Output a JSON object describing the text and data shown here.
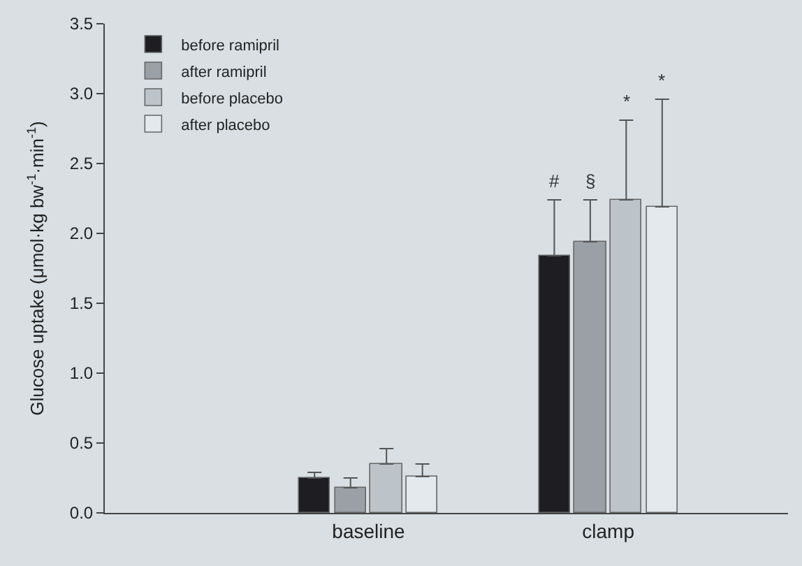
{
  "chart_data": {
    "type": "bar",
    "ylabel": "Glucose uptake (μmol·kg bw$^{-1}$·min$^{-1}$)",
    "categories": [
      "baseline",
      "clamp"
    ],
    "series": [
      {
        "name": "before ramipril",
        "color": "#1e1e22",
        "values": [
          0.25,
          1.84
        ],
        "errors": [
          [
            0.25,
            0.29
          ],
          [
            1.84,
            2.24
          ]
        ]
      },
      {
        "name": "after ramipril",
        "color": "#9aa0a6",
        "values": [
          0.18,
          1.94
        ],
        "errors": [
          [
            0.18,
            0.25
          ],
          [
            1.94,
            2.24
          ]
        ]
      },
      {
        "name": "before placebo",
        "color": "#bcc4ca",
        "values": [
          0.35,
          2.24
        ],
        "errors": [
          [
            0.35,
            0.46
          ],
          [
            2.24,
            2.81
          ]
        ]
      },
      {
        "name": "after placebo",
        "color": "#e4e9ed",
        "values": [
          0.26,
          2.19
        ],
        "errors": [
          [
            0.26,
            0.35
          ],
          [
            2.19,
            2.96
          ]
        ]
      }
    ],
    "annotations": [
      "#",
      "§",
      "*",
      "*"
    ],
    "ylim": [
      0,
      3.5
    ],
    "yticks": [
      {
        "value": 0,
        "label": "0.0"
      },
      0.5,
      {
        "value": 1,
        "label": "1.0"
      },
      1.5,
      {
        "value": 2,
        "label": "2.0"
      },
      2.5,
      {
        "value": 3,
        "label": "3.0"
      },
      3.5
    ],
    "legend": "top left",
    "grid": false
  }
}
